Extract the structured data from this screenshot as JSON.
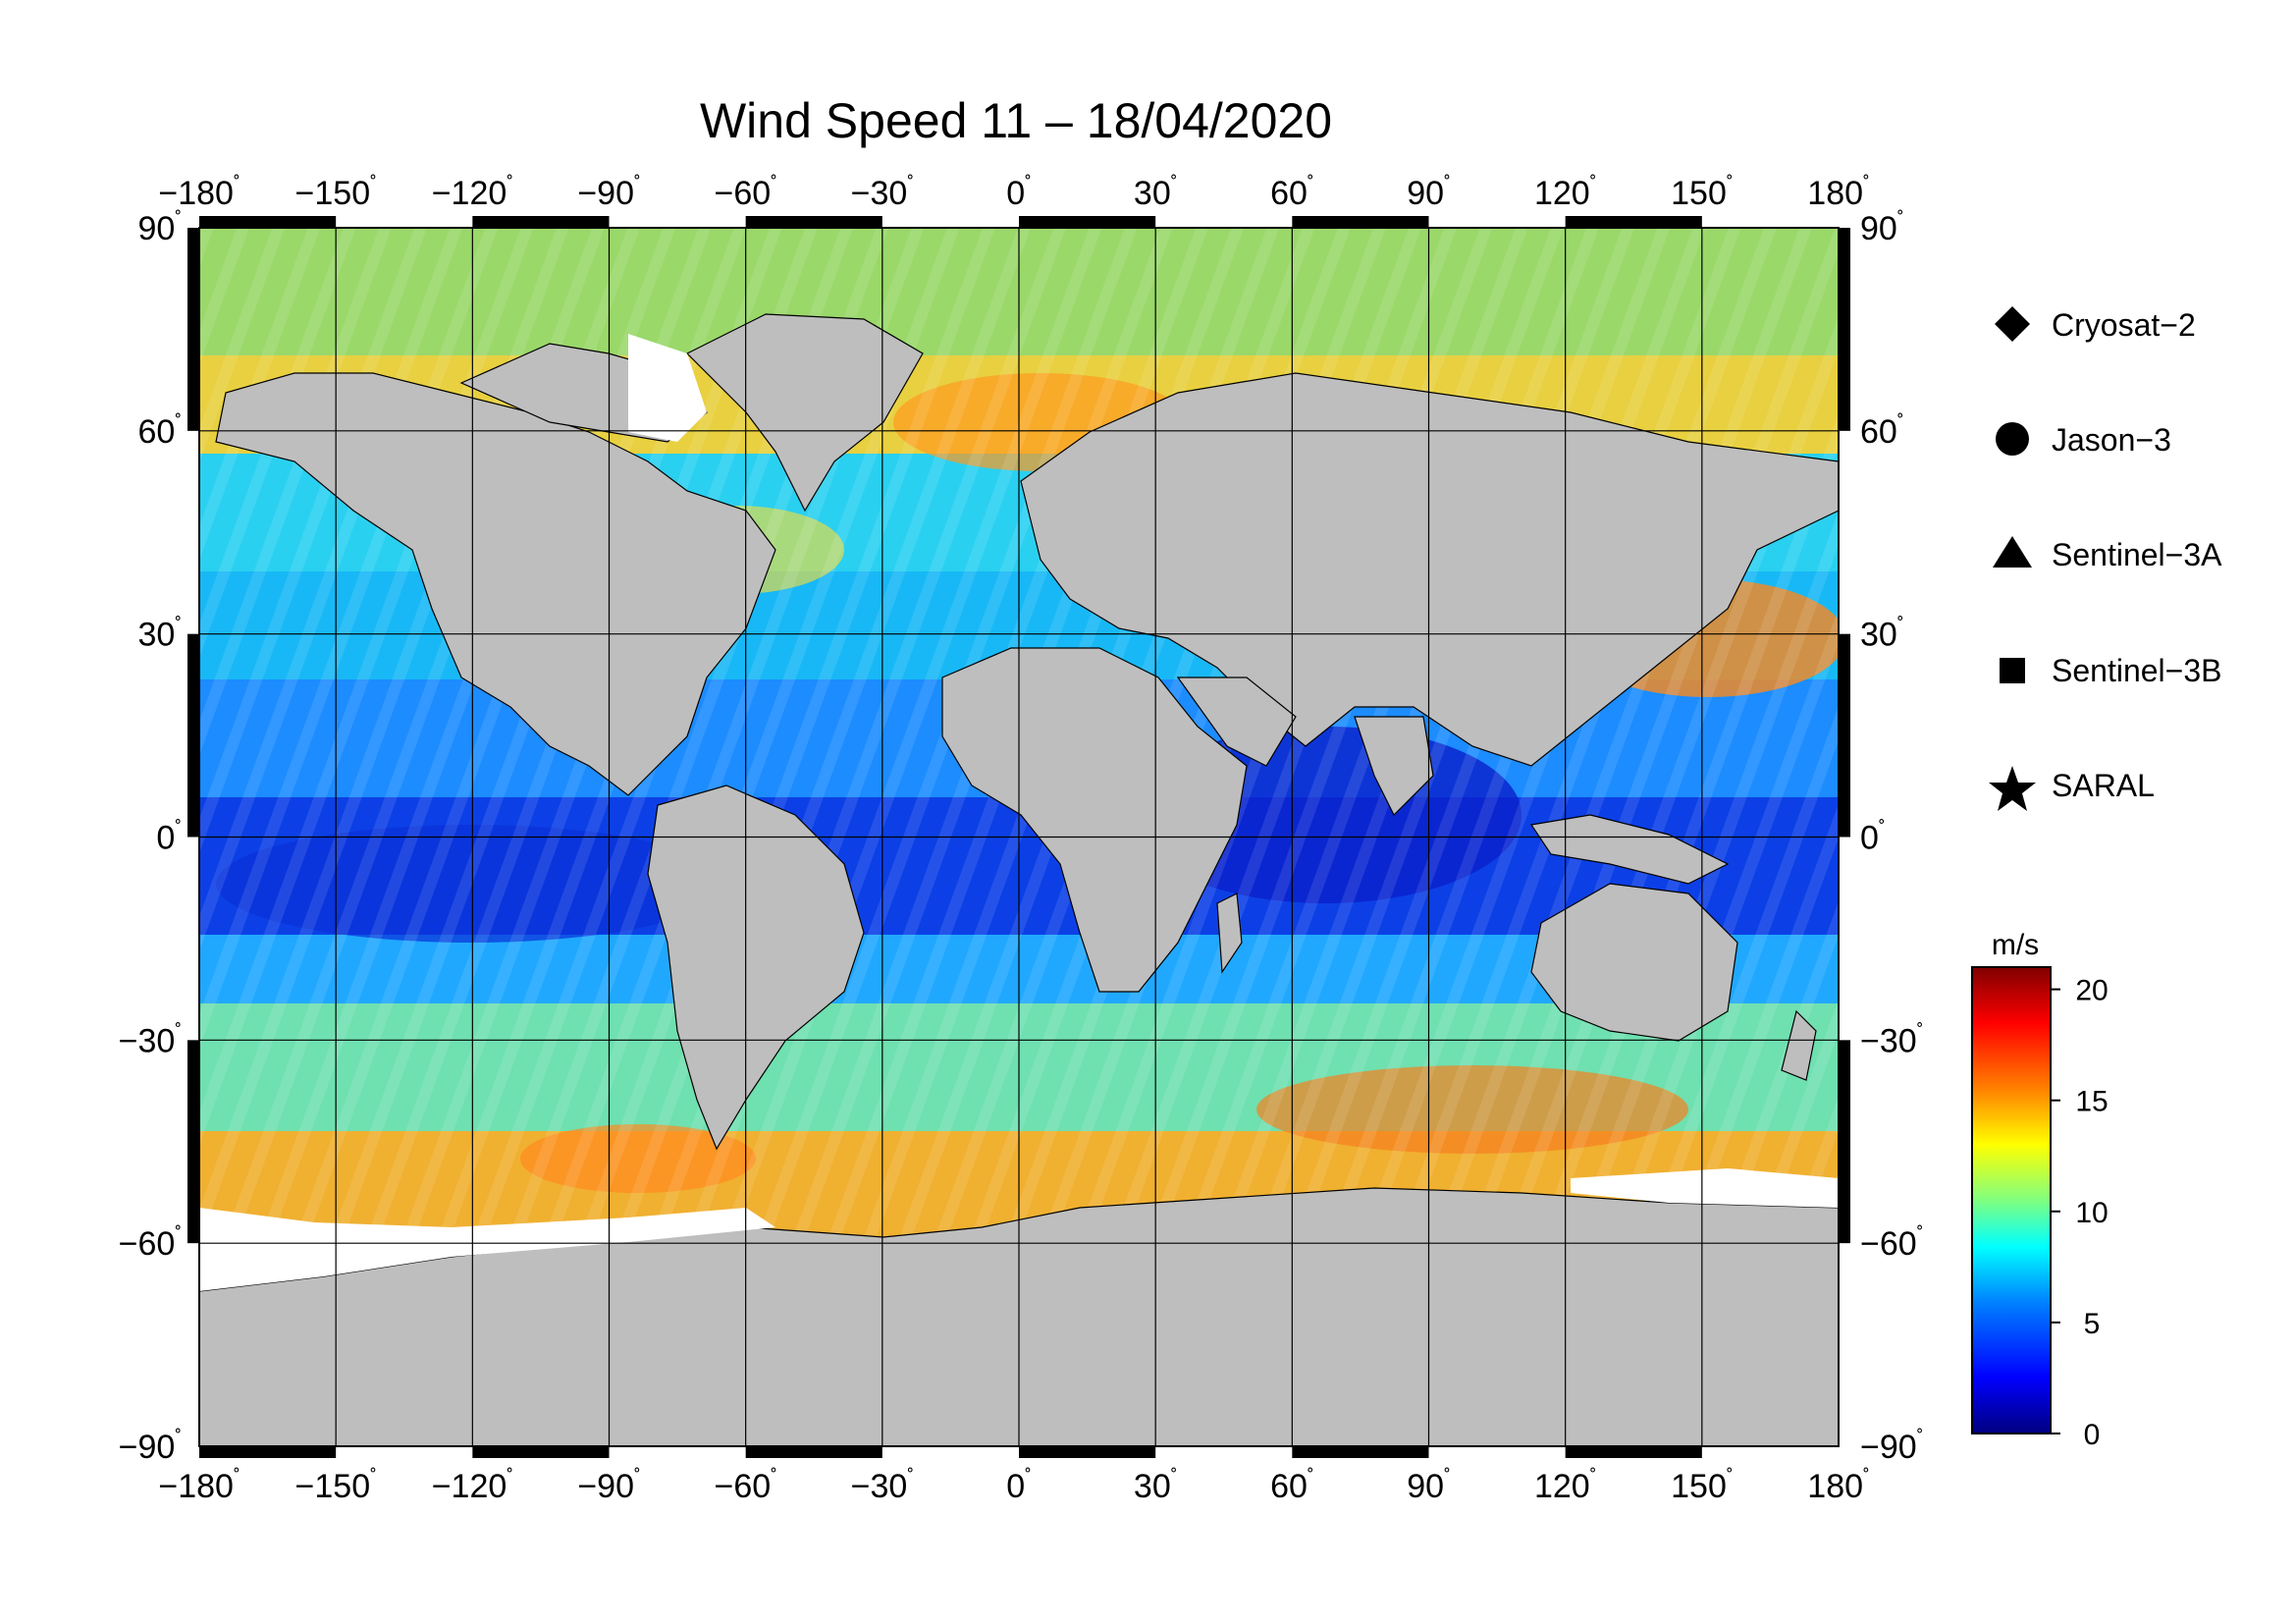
{
  "title": "Wind Speed 11 – 18/04/2020",
  "map": {
    "projection": "equirectangular",
    "lon_range": [
      -180,
      180
    ],
    "lat_range": [
      -90,
      90
    ],
    "lon_ticks": [
      -180,
      -150,
      -120,
      -90,
      -60,
      -30,
      0,
      30,
      60,
      90,
      120,
      150,
      180
    ],
    "lat_ticks": [
      90,
      60,
      30,
      0,
      -30,
      -60,
      -90
    ],
    "lon_tick_labels": [
      "−180",
      "−150",
      "−120",
      "−90",
      "−60",
      "−30",
      "0",
      "30",
      "60",
      "90",
      "120",
      "150",
      "180"
    ],
    "lat_tick_labels_left": [
      "90",
      "60",
      "30",
      "0",
      "−30",
      "−60",
      "−90"
    ],
    "lat_tick_labels_right": [
      "90",
      "60",
      "30",
      "0",
      "−30",
      "−60",
      "−90"
    ],
    "degree_symbol": "˚",
    "grid": true,
    "land_color": "#bebebe",
    "ice_color": "#ffffff"
  },
  "legend": {
    "items": [
      {
        "label": "Cryosat−2",
        "icon": "diamond-icon"
      },
      {
        "label": "Jason−3",
        "icon": "circle-icon"
      },
      {
        "label": "Sentinel−3A",
        "icon": "triangle-icon"
      },
      {
        "label": "Sentinel−3B",
        "icon": "square-icon"
      },
      {
        "label": "SARAL",
        "icon": "star-icon"
      }
    ]
  },
  "colorbar": {
    "unit": "m/s",
    "range": [
      0,
      21
    ],
    "ticks": [
      0,
      5,
      10,
      15,
      20
    ],
    "tick_labels": [
      "0",
      "5",
      "10",
      "15",
      "20"
    ],
    "colormap": [
      "#000080",
      "#0000ff",
      "#0080ff",
      "#00ffff",
      "#80ff80",
      "#ffff00",
      "#ff8000",
      "#ff0000",
      "#800000"
    ]
  }
}
